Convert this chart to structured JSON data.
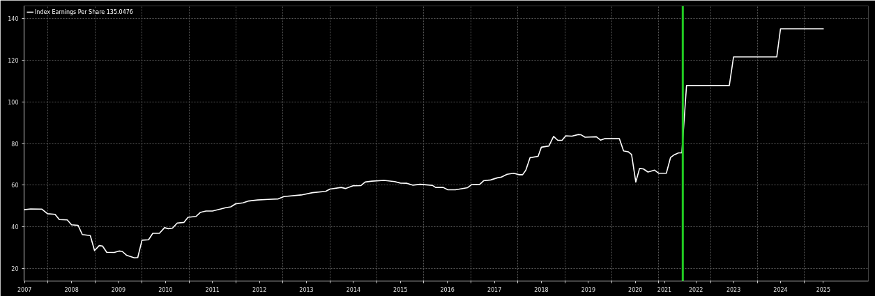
{
  "chart_data": {
    "type": "line",
    "series": [
      {
        "name": "Index Earnings Per Share 135.0476",
        "color": "#ffffff",
        "x": [
          2007.49,
          2007.63,
          2007.87,
          2007.99,
          2008.15,
          2008.24,
          2008.41,
          2008.5,
          2008.64,
          2008.73,
          2008.9,
          2008.99,
          2009.09,
          2009.16,
          2009.25,
          2009.41,
          2009.51,
          2009.58,
          2009.67,
          2009.84,
          2009.91,
          2010.0,
          2010.14,
          2010.23,
          2010.37,
          2010.48,
          2010.56,
          2010.65,
          2010.75,
          2010.89,
          2010.98,
          2011.15,
          2011.24,
          2011.36,
          2011.5,
          2011.68,
          2011.78,
          2011.89,
          2011.99,
          2012.15,
          2012.27,
          2012.46,
          2012.69,
          2012.9,
          2013.02,
          2013.39,
          2013.63,
          2013.91,
          2014.0,
          2014.24,
          2014.33,
          2014.49,
          2014.66,
          2014.75,
          2014.89,
          2015.15,
          2015.38,
          2015.5,
          2015.64,
          2015.76,
          2015.92,
          2016.18,
          2016.25,
          2016.41,
          2016.51,
          2016.67,
          2016.93,
          2017.02,
          2017.19,
          2017.27,
          2017.42,
          2017.56,
          2017.65,
          2017.77,
          2017.91,
          2018.03,
          2018.1,
          2018.17,
          2018.26,
          2018.43,
          2018.5,
          2018.66,
          2018.76,
          2018.85,
          2018.94,
          2019.02,
          2019.15,
          2019.29,
          2019.34,
          2019.43,
          2019.67,
          2019.76,
          2019.85,
          2020.16,
          2020.25,
          2020.35,
          2020.42,
          2020.51,
          2020.59,
          2020.67,
          2020.77,
          2020.91,
          2021.0,
          2021.16,
          2021.25,
          2021.33,
          2021.42,
          2021.49,
          2021.59,
          2022.5,
          2022.59,
          2023.51,
          2023.59,
          2024.51
        ],
        "values": [
          48.2,
          48.6,
          48.5,
          46.3,
          46.0,
          43.5,
          43.3,
          41.0,
          40.7,
          36.3,
          35.8,
          28.6,
          31.0,
          30.8,
          27.8,
          27.7,
          28.4,
          28.2,
          26.4,
          25.1,
          25.3,
          33.6,
          33.8,
          36.9,
          36.9,
          39.6,
          39.1,
          39.4,
          41.8,
          42.1,
          44.6,
          45.0,
          46.9,
          47.6,
          47.6,
          48.6,
          49.2,
          49.6,
          51.0,
          51.5,
          52.4,
          52.9,
          53.2,
          53.4,
          54.5,
          55.3,
          56.4,
          57.0,
          58.1,
          58.9,
          58.4,
          59.7,
          59.8,
          61.5,
          61.9,
          62.3,
          61.7,
          61.0,
          60.9,
          60.0,
          60.4,
          59.9,
          58.9,
          58.9,
          57.8,
          57.8,
          58.8,
          60.3,
          60.4,
          62.1,
          62.5,
          63.5,
          63.9,
          65.2,
          65.7,
          65.0,
          65.0,
          67.2,
          73.2,
          73.8,
          78.2,
          78.8,
          83.4,
          81.5,
          81.5,
          83.7,
          83.5,
          84.3,
          84.2,
          83.0,
          83.2,
          81.6,
          82.3,
          82.3,
          76.4,
          76.0,
          74.7,
          61.5,
          68.0,
          67.8,
          66.3,
          67.2,
          65.7,
          65.7,
          73.3,
          74.6,
          75.5,
          75.5,
          107.8,
          107.8,
          121.5,
          121.5,
          135.0,
          135.0
        ]
      }
    ],
    "xlim": [
      2007.49,
      2025.46
    ],
    "xticks": [
      {
        "value": 2007.5,
        "label": "2007"
      },
      {
        "value": 2008.5,
        "label": "2008"
      },
      {
        "value": 2009.5,
        "label": "2009"
      },
      {
        "value": 2010.5,
        "label": "2010"
      },
      {
        "value": 2011.5,
        "label": "2011"
      },
      {
        "value": 2012.5,
        "label": "2012"
      },
      {
        "value": 2013.5,
        "label": "2013"
      },
      {
        "value": 2014.5,
        "label": "2014"
      },
      {
        "value": 2015.5,
        "label": "2015"
      },
      {
        "value": 2016.5,
        "label": "2016"
      },
      {
        "value": 2017.5,
        "label": "2017"
      },
      {
        "value": 2018.5,
        "label": "2018"
      },
      {
        "value": 2019.5,
        "label": "2019"
      },
      {
        "value": 2020.5,
        "label": "2020"
      },
      {
        "value": 2021.12,
        "label": "2021"
      },
      {
        "value": 2021.79,
        "label": "2022"
      },
      {
        "value": 2022.59,
        "label": "2023"
      },
      {
        "value": 2023.59,
        "label": "2024"
      },
      {
        "value": 2024.5,
        "label": "2025"
      },
      {
        "value": 2008,
        "label": null
      },
      {
        "value": 2009,
        "label": null
      },
      {
        "value": 2010,
        "label": null
      },
      {
        "value": 2011,
        "label": null
      },
      {
        "value": 2012,
        "label": null
      },
      {
        "value": 2013,
        "label": null
      },
      {
        "value": 2014,
        "label": null
      },
      {
        "value": 2015,
        "label": null
      },
      {
        "value": 2016,
        "label": null
      },
      {
        "value": 2017,
        "label": null
      },
      {
        "value": 2018,
        "label": null
      },
      {
        "value": 2019,
        "label": null
      },
      {
        "value": 2020,
        "label": null
      },
      {
        "value": 2021,
        "label": null
      },
      {
        "value": 2022.1,
        "label": null
      },
      {
        "value": 2023.1,
        "label": null
      },
      {
        "value": 2024.1,
        "label": null
      }
    ],
    "ylim": [
      14,
      146
    ],
    "yticks": [
      20,
      40,
      60,
      80,
      100,
      120,
      140
    ],
    "ref_lines": [
      {
        "axis": "x",
        "value": 2021.51,
        "color": "#22cc22"
      }
    ],
    "grid": true,
    "legend": "top left",
    "marker": "none",
    "line_style": "solid"
  }
}
